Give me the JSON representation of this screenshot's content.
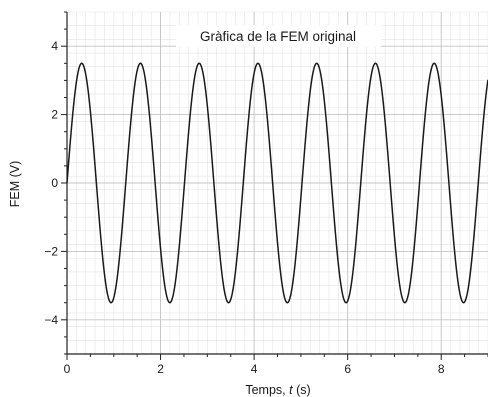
{
  "chart_data": {
    "type": "line",
    "title": "Gràfica de la FEM original",
    "xlabel": "Temps, t (s)",
    "ylabel": "FEM (V)",
    "xlim": [
      0,
      9
    ],
    "ylim": [
      -5,
      5
    ],
    "x_ticks": [
      0,
      2,
      4,
      6,
      8
    ],
    "y_ticks": [
      -4,
      -2,
      0,
      2,
      4
    ],
    "grid": true,
    "minor_grid": true,
    "series": [
      {
        "function": "sine",
        "amplitude": 3.5,
        "period": 1.256,
        "x_range": [
          0,
          9
        ],
        "peaks_x": [
          0.314,
          1.57,
          2.826,
          4.082,
          5.338,
          6.594,
          7.85
        ],
        "troughs_x": [
          0.942,
          2.198,
          3.454,
          4.71,
          5.966,
          7.222,
          8.478
        ],
        "color": "#1a1a1a"
      }
    ]
  }
}
